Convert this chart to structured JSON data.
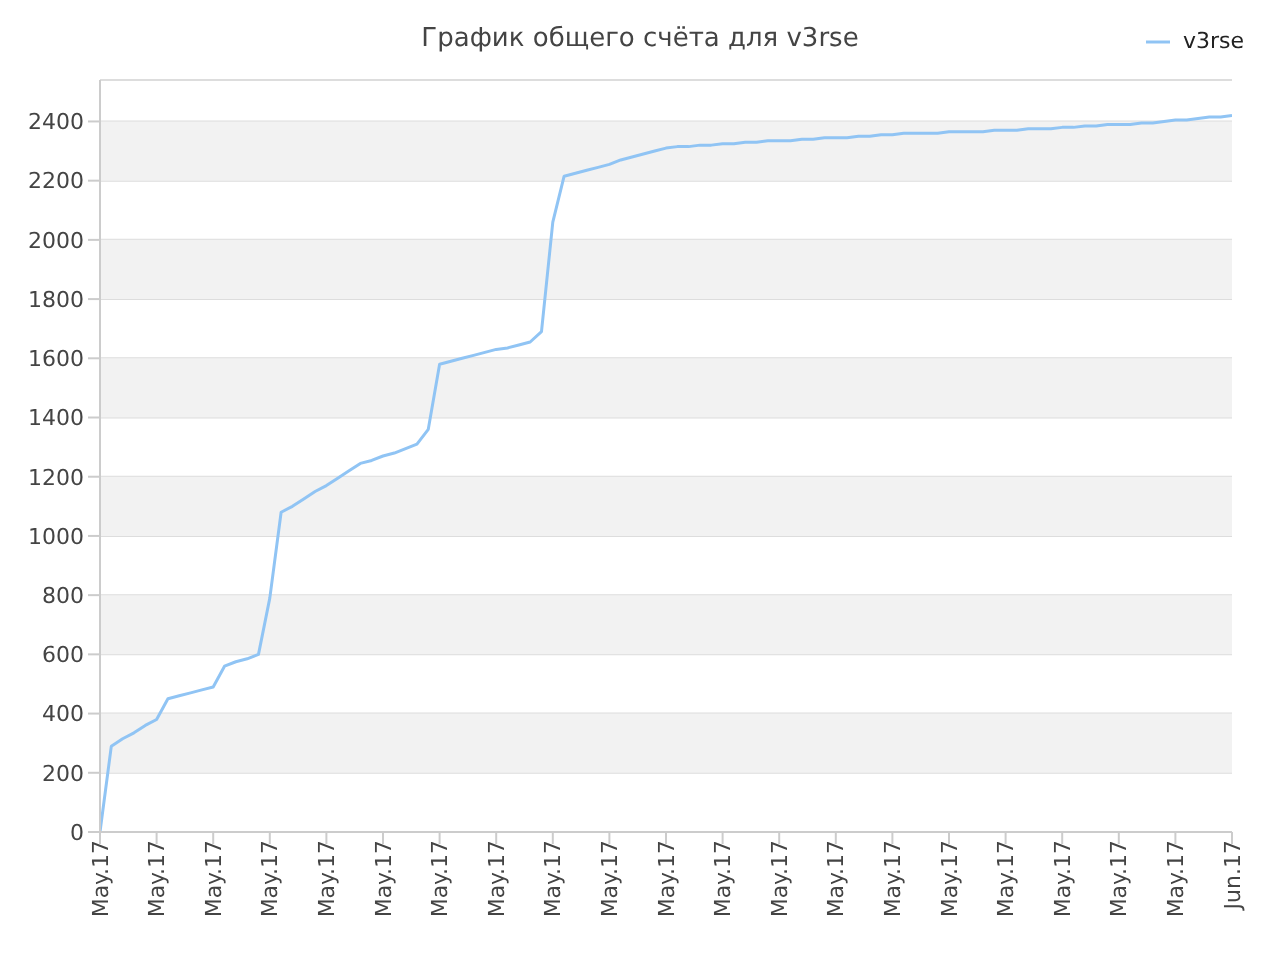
{
  "chart_data": {
    "type": "line",
    "title": "График общего счёта для v3rse",
    "categories": [
      "May.17",
      null,
      null,
      null,
      null,
      "May.17",
      null,
      null,
      null,
      null,
      "May.17",
      null,
      null,
      null,
      null,
      "May.17",
      null,
      null,
      null,
      null,
      "May.17",
      null,
      null,
      null,
      null,
      "May.17",
      null,
      null,
      null,
      null,
      "May.17",
      null,
      null,
      null,
      null,
      "May.17",
      null,
      null,
      null,
      null,
      "May.17",
      null,
      null,
      null,
      null,
      "May.17",
      null,
      null,
      null,
      null,
      "May.17",
      null,
      null,
      null,
      null,
      "May.17",
      null,
      null,
      null,
      null,
      "May.17",
      null,
      null,
      null,
      null,
      "May.17",
      null,
      null,
      null,
      null,
      "May.17",
      null,
      null,
      null,
      null,
      "May.17",
      null,
      null,
      null,
      null,
      "May.17",
      null,
      null,
      null,
      null,
      "May.17",
      null,
      null,
      null,
      null,
      "May.17",
      null,
      null,
      null,
      null,
      "May.17",
      null,
      null,
      null,
      null,
      "Jun.17"
    ],
    "series": [
      {
        "name": "v3rse",
        "color": "#90c4f4",
        "values": [
          0,
          290,
          315,
          335,
          360,
          380,
          450,
          460,
          470,
          480,
          490,
          560,
          575,
          585,
          600,
          790,
          1080,
          1100,
          1125,
          1150,
          1170,
          1195,
          1220,
          1245,
          1255,
          1270,
          1280,
          1295,
          1310,
          1360,
          1580,
          1590,
          1600,
          1610,
          1620,
          1630,
          1635,
          1645,
          1655,
          1690,
          2060,
          2215,
          2225,
          2235,
          2245,
          2255,
          2270,
          2280,
          2290,
          2300,
          2310,
          2315,
          2315,
          2320,
          2320,
          2325,
          2325,
          2330,
          2330,
          2335,
          2335,
          2335,
          2340,
          2340,
          2345,
          2345,
          2345,
          2350,
          2350,
          2355,
          2355,
          2360,
          2360,
          2360,
          2360,
          2365,
          2365,
          2365,
          2365,
          2370,
          2370,
          2370,
          2375,
          2375,
          2375,
          2380,
          2380,
          2385,
          2385,
          2390,
          2390,
          2390,
          2395,
          2395,
          2400,
          2405,
          2405,
          2410,
          2415,
          2415,
          2420
        ]
      }
    ],
    "ylim": [
      0,
      2540
    ],
    "yticks": [
      0,
      200,
      400,
      600,
      800,
      1000,
      1200,
      1400,
      1600,
      1800,
      2000,
      2200,
      2400
    ],
    "grid": "y",
    "legend": "top right",
    "marker": "none",
    "line_style": "solid"
  }
}
